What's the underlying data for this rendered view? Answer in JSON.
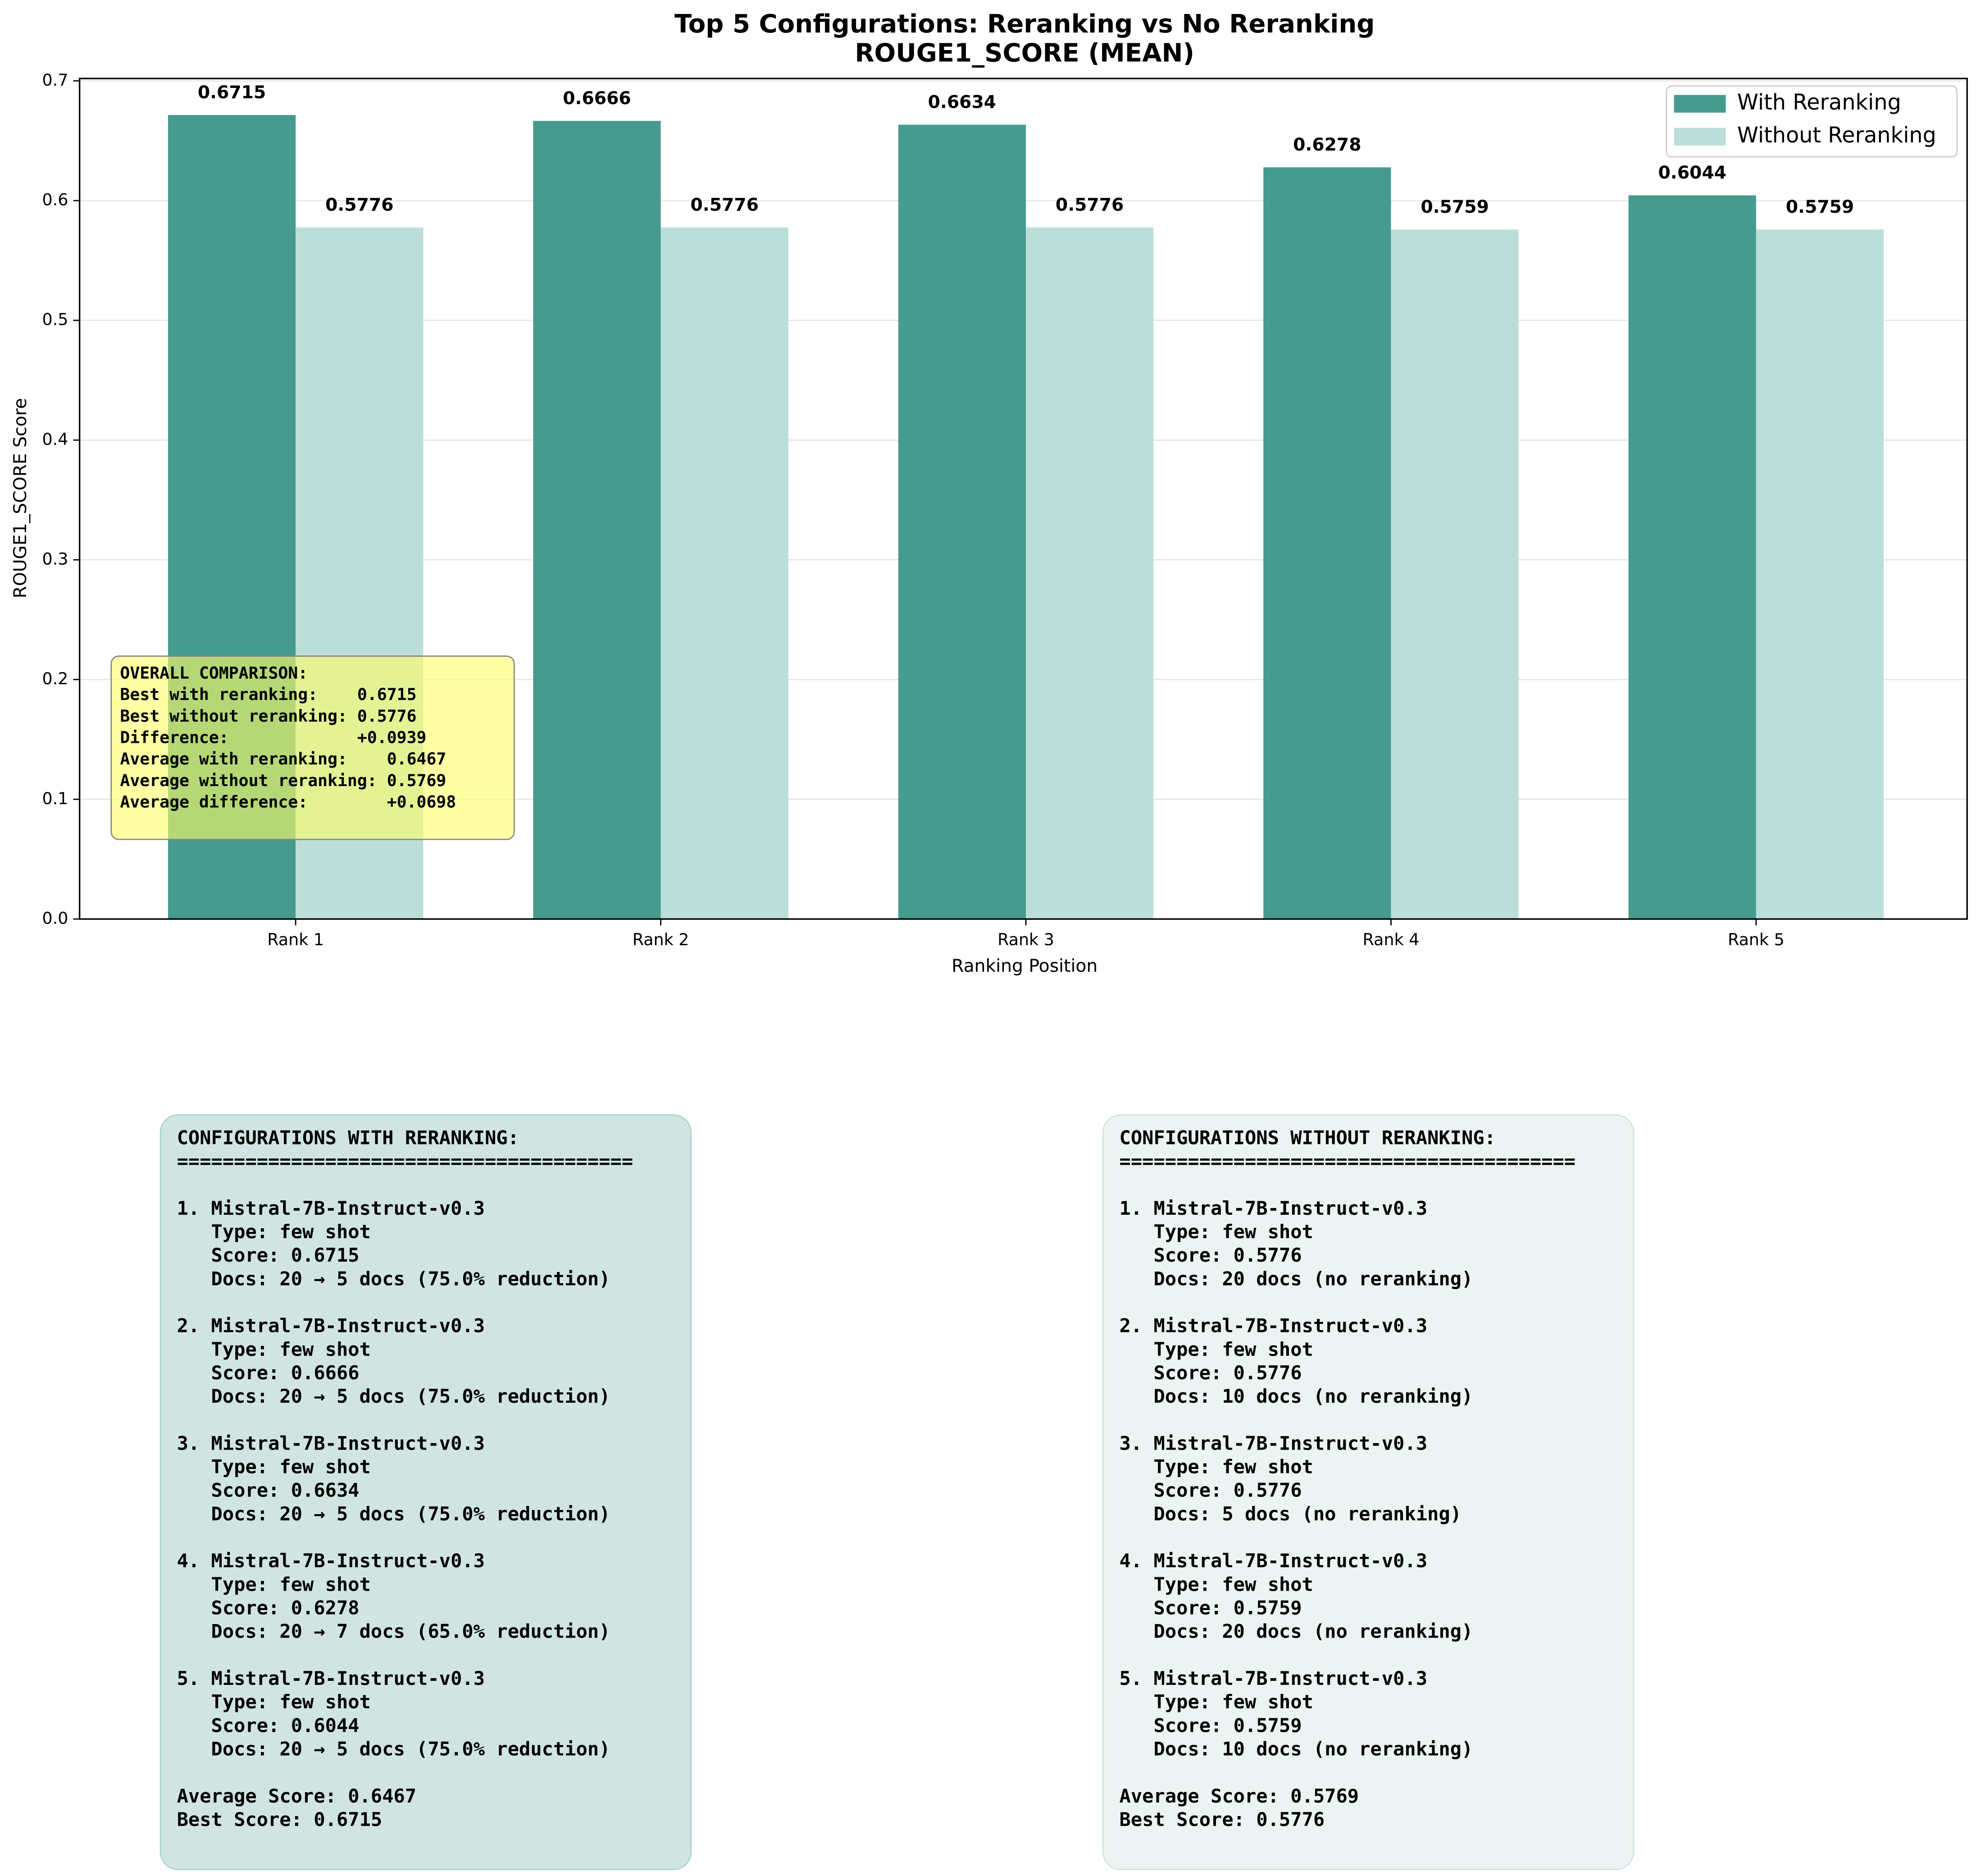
{
  "chart_data": {
    "type": "bar",
    "title": "Top 5 Configurations: Reranking vs No Reranking",
    "subtitle": "ROUGE1_SCORE (MEAN)",
    "xlabel": "Ranking Position",
    "ylabel": "ROUGE1_SCORE Score",
    "categories": [
      "Rank 1",
      "Rank 2",
      "Rank 3",
      "Rank 4",
      "Rank 5"
    ],
    "series": [
      {
        "name": "With Reranking",
        "color": "#469b8f",
        "values": [
          0.6715,
          0.6666,
          0.6634,
          0.6278,
          0.6044
        ]
      },
      {
        "name": "Without Reranking",
        "color": "#bbdfd8",
        "values": [
          0.5776,
          0.5776,
          0.5776,
          0.5759,
          0.5759
        ]
      }
    ],
    "ylim": [
      0,
      0.702
    ],
    "yticks": [
      {
        "value": 0,
        "label": "0.0"
      },
      0.1,
      0.2,
      0.3,
      0.4,
      0.5,
      0.6,
      0.7
    ],
    "grid": true,
    "legend": "upper right",
    "annotation": [
      "OVERALL COMPARISON:",
      "Best with reranking:    0.6715",
      "Best without reranking: 0.5776",
      "Difference:             +0.0939",
      "Average with reranking:    0.6467",
      "Average without reranking: 0.5769",
      "Average difference:        +0.0698"
    ]
  },
  "panels": [
    {
      "title": "CONFIGURATIONS WITH RERANKING:",
      "separator": "========================================",
      "entries": [
        [
          "1. Mistral-7B-Instruct-v0.3",
          "   Type: few shot",
          "   Score: 0.6715",
          "   Docs: 20 → 5 docs (75.0% reduction)"
        ],
        [
          "2. Mistral-7B-Instruct-v0.3",
          "   Type: few shot",
          "   Score: 0.6666",
          "   Docs: 20 → 5 docs (75.0% reduction)"
        ],
        [
          "3. Mistral-7B-Instruct-v0.3",
          "   Type: few shot",
          "   Score: 0.6634",
          "   Docs: 20 → 5 docs (75.0% reduction)"
        ],
        [
          "4. Mistral-7B-Instruct-v0.3",
          "   Type: few shot",
          "   Score: 0.6278",
          "   Docs: 20 → 7 docs (65.0% reduction)"
        ],
        [
          "5. Mistral-7B-Instruct-v0.3",
          "   Type: few shot",
          "   Score: 0.6044",
          "   Docs: 20 → 5 docs (75.0% reduction)"
        ]
      ],
      "footer": [
        "Average Score: 0.6467",
        "Best Score: 0.6715"
      ]
    },
    {
      "title": "CONFIGURATIONS WITHOUT RERANKING:",
      "separator": "========================================",
      "entries": [
        [
          "1. Mistral-7B-Instruct-v0.3",
          "   Type: few shot",
          "   Score: 0.5776",
          "   Docs: 20 docs (no reranking)"
        ],
        [
          "2. Mistral-7B-Instruct-v0.3",
          "   Type: few shot",
          "   Score: 0.5776",
          "   Docs: 10 docs (no reranking)"
        ],
        [
          "3. Mistral-7B-Instruct-v0.3",
          "   Type: few shot",
          "   Score: 0.5776",
          "   Docs: 5 docs (no reranking)"
        ],
        [
          "4. Mistral-7B-Instruct-v0.3",
          "   Type: few shot",
          "   Score: 0.5759",
          "   Docs: 20 docs (no reranking)"
        ],
        [
          "5. Mistral-7B-Instruct-v0.3",
          "   Type: few shot",
          "   Score: 0.5759",
          "   Docs: 10 docs (no reranking)"
        ]
      ],
      "footer": [
        "Average Score: 0.5769",
        "Best Score: 0.5776"
      ]
    }
  ]
}
